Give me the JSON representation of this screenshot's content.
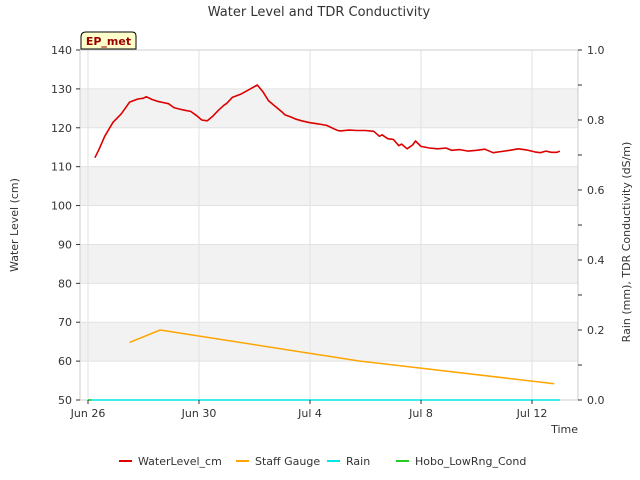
{
  "chart_data": {
    "type": "line",
    "title": "Water Level and TDR Conductivity",
    "badge": "EP_met",
    "xlabel": "Time",
    "ylabel_left": "Water Level (cm)",
    "ylabel_right": "Rain (mm), TDR Conductivity (dS/m)",
    "x_start": "Jun 26",
    "xlim": [
      0,
      17.5
    ],
    "ylim_left": [
      50,
      140
    ],
    "ylim_right": [
      0.0,
      1.0
    ],
    "x_ticks": [
      {
        "value": 0,
        "label": "Jun 26"
      },
      {
        "value": 4,
        "label": "Jun 30"
      },
      {
        "value": 8,
        "label": "Jul 4"
      },
      {
        "value": 12,
        "label": "Jul 8"
      },
      {
        "value": 16,
        "label": "Jul 12"
      }
    ],
    "y_ticks_left": [
      {
        "value": 50,
        "label": "50"
      },
      {
        "value": 60,
        "label": "60"
      },
      {
        "value": 70,
        "label": "70"
      },
      {
        "value": 80,
        "label": "80"
      },
      {
        "value": 90,
        "label": "90"
      },
      {
        "value": 100,
        "label": "100"
      },
      {
        "value": 110,
        "label": "110"
      },
      {
        "value": 120,
        "label": "120"
      },
      {
        "value": 130,
        "label": "130"
      },
      {
        "value": 140,
        "label": "140"
      }
    ],
    "y_ticks_right": [
      {
        "value": 0.0,
        "label": "0.0"
      },
      {
        "value": 0.1,
        "label": ""
      },
      {
        "value": 0.2,
        "label": "0.2"
      },
      {
        "value": 0.3,
        "label": ""
      },
      {
        "value": 0.4,
        "label": "0.4"
      },
      {
        "value": 0.5,
        "label": ""
      },
      {
        "value": 0.6,
        "label": "0.6"
      },
      {
        "value": 0.7,
        "label": ""
      },
      {
        "value": 0.8,
        "label": "0.8"
      },
      {
        "value": 0.9,
        "label": ""
      },
      {
        "value": 1.0,
        "label": "1.0"
      }
    ],
    "grid": true,
    "legend_position": "bottom",
    "series": [
      {
        "name": "WaterLevel_cm",
        "axis": "left",
        "color": "#dd0000",
        "x": [
          0.25,
          0.4,
          0.6,
          0.9,
          1.2,
          1.5,
          1.8,
          2.0,
          2.1,
          2.3,
          2.5,
          2.7,
          2.9,
          3.1,
          3.3,
          3.5,
          3.7,
          3.9,
          4.1,
          4.3,
          4.5,
          4.7,
          4.9,
          5.0,
          5.2,
          5.5,
          5.8,
          6.1,
          6.3,
          6.5,
          6.7,
          6.9,
          7.0,
          7.1,
          7.3,
          7.5,
          7.7,
          8.0,
          8.3,
          8.6,
          8.9,
          9.0,
          9.1,
          9.4,
          9.7,
          10.0,
          10.3,
          10.5,
          10.6,
          10.8,
          11.0,
          11.2,
          11.3,
          11.5,
          11.7,
          11.8,
          12.0,
          12.3,
          12.6,
          12.9,
          13.1,
          13.4,
          13.7,
          14.0,
          14.3,
          14.6,
          14.9,
          15.2,
          15.5,
          15.8,
          16.1,
          16.3,
          16.5,
          16.7,
          16.9,
          17.0
        ],
        "values": [
          112.3,
          114.5,
          117.8,
          121.4,
          123.6,
          126.6,
          127.4,
          127.6,
          128.0,
          127.3,
          126.8,
          126.5,
          126.2,
          125.2,
          124.8,
          124.5,
          124.2,
          123.2,
          122.0,
          121.8,
          123.0,
          124.5,
          125.8,
          126.3,
          127.8,
          128.6,
          129.8,
          131.0,
          129.3,
          127.0,
          125.8,
          124.6,
          124.0,
          123.3,
          122.8,
          122.2,
          121.8,
          121.3,
          121.0,
          120.6,
          119.6,
          119.3,
          119.2,
          119.4,
          119.3,
          119.3,
          119.1,
          117.8,
          118.2,
          117.2,
          117.0,
          115.4,
          115.8,
          114.6,
          115.6,
          116.6,
          115.2,
          114.8,
          114.6,
          114.8,
          114.2,
          114.4,
          114.0,
          114.2,
          114.5,
          113.6,
          113.9,
          114.2,
          114.6,
          114.3,
          113.8,
          113.6,
          114.0,
          113.7,
          113.7,
          114.0
        ]
      },
      {
        "name": "Staff Gauge",
        "axis": "left",
        "color": "#ffa500",
        "x": [
          1.5,
          2.6,
          9.8,
          16.8
        ],
        "values": [
          64.8,
          68.0,
          60.0,
          54.2
        ]
      },
      {
        "name": "Rain",
        "axis": "right",
        "color": "#00e5e5",
        "x": [
          0.0,
          17.0
        ],
        "values": [
          0.0,
          0.0
        ]
      },
      {
        "name": "Hobo_LowRng_Cond",
        "axis": "right",
        "color": "#22cc22",
        "x": [
          0.0,
          0.12
        ],
        "values": [
          0.0,
          0.0
        ]
      }
    ]
  }
}
